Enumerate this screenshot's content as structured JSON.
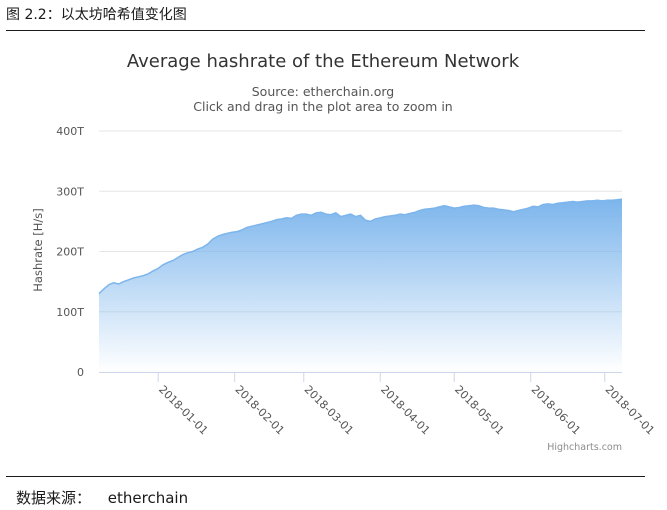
{
  "caption": "图 2.2：以太坊哈希值变化图",
  "source_note": {
    "label": "数据来源：",
    "value": "etherchain"
  },
  "credits": "Highcharts.com",
  "colors": {
    "series": "#7cb5ec",
    "grid": "#e6e6e6",
    "axis": "#ccd6eb"
  },
  "chart_data": {
    "type": "area",
    "title": "Average hashrate of the Ethereum Network",
    "subtitle": "Source: etherchain.org",
    "subtitle2": "Click and drag in the plot area to zoom in",
    "xlabel": "",
    "ylabel": "Hashrate [H/s]",
    "ylim": [
      0,
      400
    ],
    "y_unit": "T",
    "y_ticks": [
      "0",
      "100T",
      "200T",
      "300T",
      "400T"
    ],
    "x_ticks": [
      "2018-01-01",
      "2018-02-01",
      "2018-03-01",
      "2018-04-01",
      "2018-05-01",
      "2018-06-01",
      "2018-07-01"
    ],
    "x_start": "2017-12-08",
    "x_end": "2018-07-08",
    "grid": true,
    "legend": "none",
    "series": [
      {
        "x": [
          "2017-12-08",
          "2017-12-10",
          "2017-12-12",
          "2017-12-14",
          "2017-12-16",
          "2017-12-18",
          "2017-12-20",
          "2017-12-22",
          "2017-12-24",
          "2017-12-26",
          "2017-12-28",
          "2017-12-30",
          "2018-01-01",
          "2018-01-03",
          "2018-01-05",
          "2018-01-07",
          "2018-01-09",
          "2018-01-11",
          "2018-01-13",
          "2018-01-15",
          "2018-01-17",
          "2018-01-19",
          "2018-01-21",
          "2018-01-23",
          "2018-01-25",
          "2018-01-27",
          "2018-01-29",
          "2018-01-31",
          "2018-02-02",
          "2018-02-04",
          "2018-02-06",
          "2018-02-08",
          "2018-02-10",
          "2018-02-12",
          "2018-02-14",
          "2018-02-16",
          "2018-02-18",
          "2018-02-20",
          "2018-02-22",
          "2018-02-24",
          "2018-02-26",
          "2018-02-28",
          "2018-03-02",
          "2018-03-04",
          "2018-03-06",
          "2018-03-08",
          "2018-03-10",
          "2018-03-12",
          "2018-03-14",
          "2018-03-16",
          "2018-03-18",
          "2018-03-20",
          "2018-03-22",
          "2018-03-24",
          "2018-03-26",
          "2018-03-28",
          "2018-03-30",
          "2018-04-01",
          "2018-04-03",
          "2018-04-05",
          "2018-04-07",
          "2018-04-09",
          "2018-04-11",
          "2018-04-13",
          "2018-04-15",
          "2018-04-17",
          "2018-04-19",
          "2018-04-21",
          "2018-04-23",
          "2018-04-25",
          "2018-04-27",
          "2018-04-29",
          "2018-05-01",
          "2018-05-03",
          "2018-05-05",
          "2018-05-07",
          "2018-05-09",
          "2018-05-11",
          "2018-05-13",
          "2018-05-15",
          "2018-05-17",
          "2018-05-19",
          "2018-05-21",
          "2018-05-23",
          "2018-05-25",
          "2018-05-27",
          "2018-05-29",
          "2018-05-31",
          "2018-06-02",
          "2018-06-04",
          "2018-06-06",
          "2018-06-08",
          "2018-06-10",
          "2018-06-12",
          "2018-06-14",
          "2018-06-16",
          "2018-06-18",
          "2018-06-20",
          "2018-06-22",
          "2018-06-24",
          "2018-06-26",
          "2018-06-28",
          "2018-06-30",
          "2018-07-02",
          "2018-07-04",
          "2018-07-06",
          "2018-07-08"
        ],
        "values": [
          130,
          138,
          145,
          148,
          146,
          150,
          153,
          156,
          158,
          160,
          163,
          168,
          172,
          178,
          182,
          185,
          190,
          195,
          198,
          200,
          204,
          207,
          212,
          220,
          225,
          228,
          230,
          232,
          233,
          236,
          240,
          242,
          244,
          246,
          248,
          250,
          253,
          254,
          256,
          255,
          260,
          262,
          262,
          260,
          264,
          265,
          262,
          261,
          264,
          258,
          260,
          262,
          258,
          260,
          252,
          250,
          254,
          256,
          258,
          259,
          260,
          262,
          261,
          263,
          265,
          268,
          270,
          271,
          272,
          274,
          276,
          274,
          272,
          273,
          275,
          276,
          277,
          276,
          273,
          272,
          272,
          270,
          269,
          268,
          266,
          268,
          270,
          272,
          275,
          274,
          278,
          279,
          278,
          280,
          281,
          282,
          283,
          282,
          283,
          284,
          284,
          285,
          284,
          285,
          285,
          286,
          287
        ]
      }
    ]
  }
}
